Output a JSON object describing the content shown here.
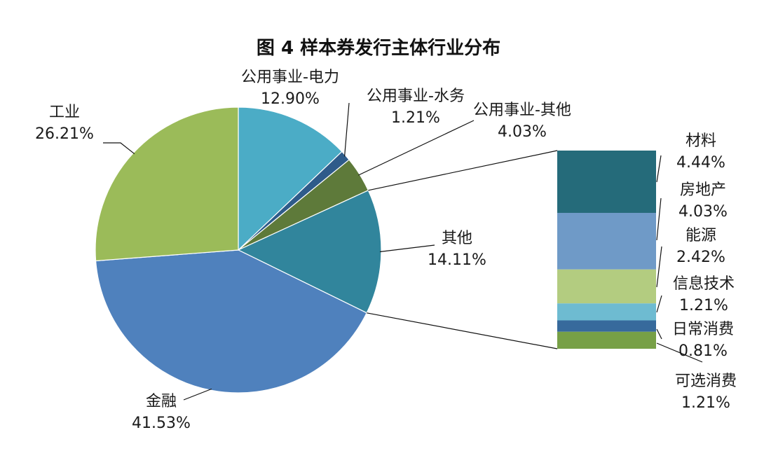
{
  "chart_data": [
    {
      "type": "pie",
      "title": "图 4  样本券发行主体行业分布",
      "slices": [
        {
          "name": "公用事业-电力",
          "value": 12.9,
          "label": "12.90%",
          "color": "#4bacc6"
        },
        {
          "name": "公用事业-水务",
          "value": 1.21,
          "label": "1.21%",
          "color": "#2e5b8a"
        },
        {
          "name": "公用事业-其他",
          "value": 4.03,
          "label": "4.03%",
          "color": "#5e7a3a"
        },
        {
          "name": "其他",
          "value": 14.11,
          "label": "14.11%",
          "color": "#31859c"
        },
        {
          "name": "金融",
          "value": 41.53,
          "label": "41.53%",
          "color": "#4f81bd"
        },
        {
          "name": "工业",
          "value": 26.21,
          "label": "26.21%",
          "color": "#9bbb59"
        }
      ]
    },
    {
      "type": "bar",
      "stacked": true,
      "description_of": "其他",
      "segments": [
        {
          "name": "材料",
          "value": 4.44,
          "label": "4.44%",
          "color": "#256b7a"
        },
        {
          "name": "房地产",
          "value": 4.03,
          "label": "4.03%",
          "color": "#6f9ac7"
        },
        {
          "name": "能源",
          "value": 2.42,
          "label": "2.42%",
          "color": "#b3cc80"
        },
        {
          "name": "信息技术",
          "value": 1.21,
          "label": "1.21%",
          "color": "#6ebbd1"
        },
        {
          "name": "日常消费",
          "value": 0.81,
          "label": "0.81%",
          "color": "#376a9c"
        },
        {
          "name": "可选消费",
          "value": 1.21,
          "label": "1.21%",
          "color": "#77a046"
        }
      ]
    }
  ]
}
